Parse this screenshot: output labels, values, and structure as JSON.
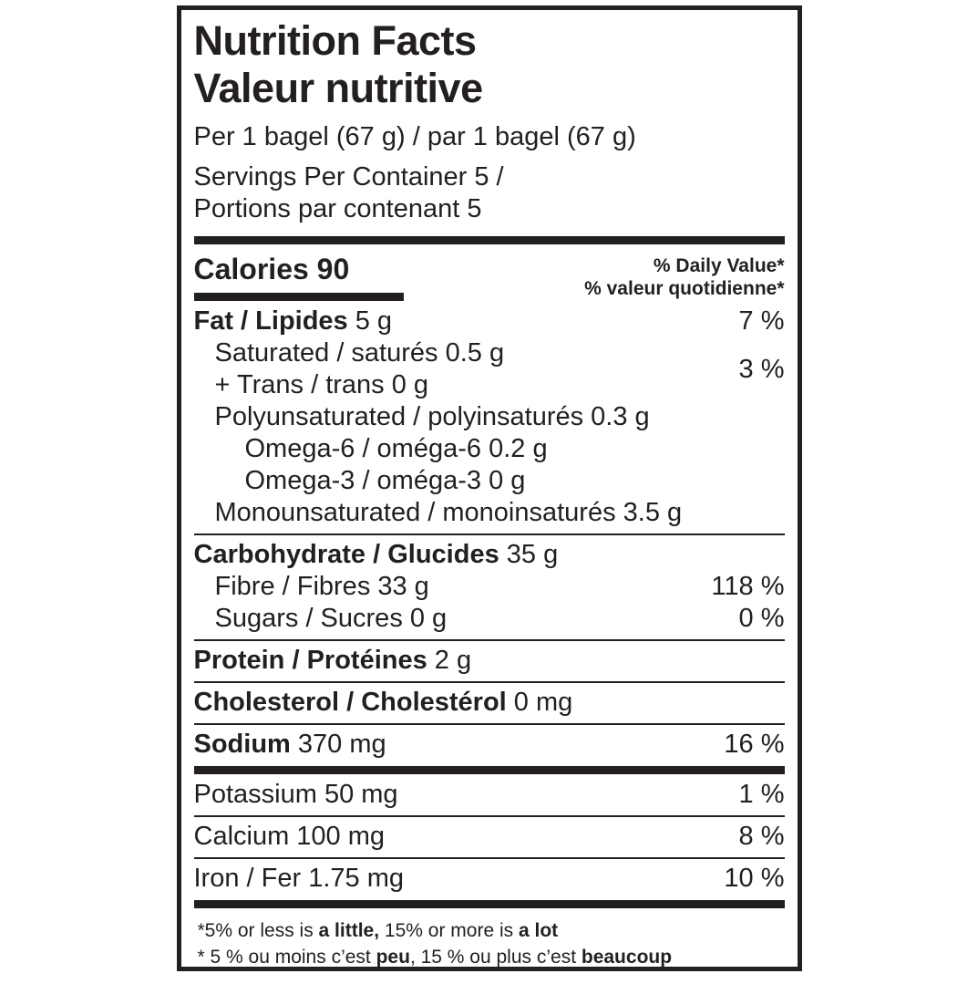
{
  "colors": {
    "ink": "#231f20",
    "background": "#ffffff"
  },
  "header": {
    "title_en": "Nutrition Facts",
    "title_fr": "Valeur nutritive",
    "serving": "Per 1 bagel (67 g) / par 1 bagel (67 g)",
    "servings_container_en": "Servings Per Container 5 /",
    "servings_container_fr": "Portions par contenant 5"
  },
  "calories": {
    "text": "Calories 90",
    "dv_header_en": "% Daily Value*",
    "dv_header_fr": "% valeur quotidienne*"
  },
  "nutrients": {
    "fat": {
      "name": "Fat / Lipides",
      "amount": " 5 g",
      "dv": "7 %"
    },
    "saturated_trans": {
      "line1": "Saturated / saturés 0.5 g",
      "line2": "+ Trans / trans 0 g",
      "dv": "3 %"
    },
    "polyunsaturated": {
      "name": "Polyunsaturated / polyinsaturés 0.3 g"
    },
    "omega6": {
      "name": "Omega-6 / oméga-6 0.2 g"
    },
    "omega3": {
      "name": "Omega-3 / oméga-3 0 g"
    },
    "monounsaturated": {
      "name": "Monounsaturated / monoinsaturés 3.5 g"
    },
    "carbohydrate": {
      "name": "Carbohydrate / Glucides",
      "amount": " 35 g"
    },
    "fibre": {
      "name": "Fibre / Fibres 33 g",
      "dv": "118 %"
    },
    "sugars": {
      "name": "Sugars / Sucres 0 g",
      "dv": "0 %"
    },
    "protein": {
      "name": "Protein / Protéines",
      "amount": " 2 g"
    },
    "cholesterol": {
      "name": "Cholesterol / Cholestérol",
      "amount": " 0 mg"
    },
    "sodium": {
      "name": "Sodium",
      "amount": " 370 mg",
      "dv": "16 %"
    },
    "potassium": {
      "name": "Potassium 50 mg",
      "dv": "1 %"
    },
    "calcium": {
      "name": "Calcium 100 mg",
      "dv": "8 %"
    },
    "iron": {
      "name": "Iron / Fer 1.75 mg",
      "dv": "10 %"
    }
  },
  "footnote": {
    "en_prefix": "*5% or less is ",
    "en_bold1": "a little,",
    "en_middle": " 15% or more is ",
    "en_bold2": "a lot",
    "fr_prefix": "* 5 % ou moins c’est ",
    "fr_bold1": "peu",
    "fr_middle": ", 15 % ou plus c’est ",
    "fr_bold2": "beaucoup"
  }
}
